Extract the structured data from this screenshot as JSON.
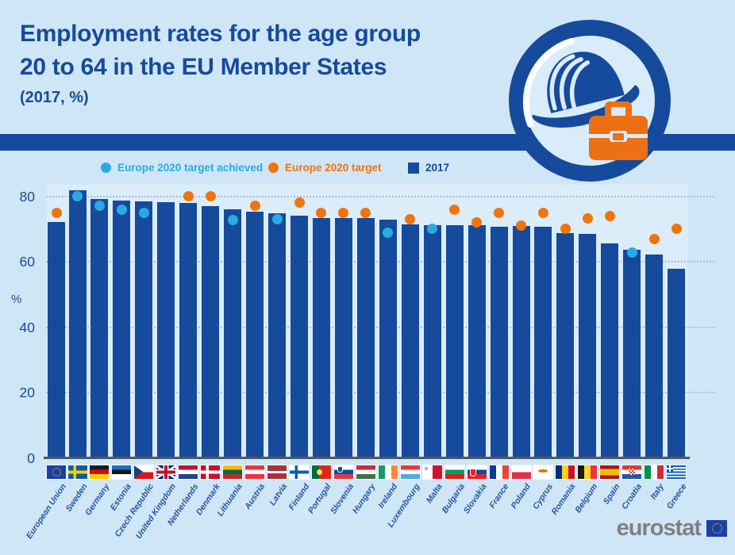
{
  "header": {
    "title_line1": "Employment rates for the age group",
    "title_line2": "20 to 64 in the EU Member States",
    "subtitle": "(2017, %)"
  },
  "legend": {
    "achieved_label": "Europe 2020 target achieved",
    "target_label": "Europe 2020 target",
    "year_label": "2017"
  },
  "colors": {
    "dark_blue": "#164A9C",
    "light_blue_dot": "#29ABE2",
    "orange_dot": "#F0740E",
    "page_background": "#CFE6F6",
    "plot_background": "#DAEDF9",
    "logo_gray": "#7E8083"
  },
  "logo": {
    "brand": "eurostat"
  },
  "chart_data": {
    "type": "bar",
    "title": "Employment rates for the age group 20 to 64 in the EU Member States",
    "subtitle": "(2017, %)",
    "ylabel": "%",
    "ylim": [
      0,
      85
    ],
    "yticks": [
      0,
      20,
      40,
      60,
      80
    ],
    "grid": "horizontal-dotted",
    "legend_position": "top",
    "bar_series_name": "2017",
    "target_series_name": "Europe 2020 target",
    "achieved_series_name": "Europe 2020 target achieved",
    "countries": [
      {
        "name": "European Union",
        "flag": "eu",
        "employment_2017": 72.2,
        "target_2020": 75,
        "target_achieved": false
      },
      {
        "name": "Sweden",
        "flag": "se",
        "employment_2017": 81.8,
        "target_2020": 80,
        "target_achieved": true
      },
      {
        "name": "Germany",
        "flag": "de",
        "employment_2017": 79.2,
        "target_2020": 77,
        "target_achieved": true
      },
      {
        "name": "Estonia",
        "flag": "ee",
        "employment_2017": 78.7,
        "target_2020": 76,
        "target_achieved": true
      },
      {
        "name": "Czech Republic",
        "flag": "cz",
        "employment_2017": 78.5,
        "target_2020": 75,
        "target_achieved": true
      },
      {
        "name": "United Kingdom",
        "flag": "gb",
        "employment_2017": 78.2,
        "target_2020": null,
        "target_achieved": false
      },
      {
        "name": "Netherlands",
        "flag": "nl",
        "employment_2017": 78.0,
        "target_2020": 80,
        "target_achieved": false
      },
      {
        "name": "Denmark",
        "flag": "dk",
        "employment_2017": 76.9,
        "target_2020": 80,
        "target_achieved": false
      },
      {
        "name": "Lithuania",
        "flag": "lt",
        "employment_2017": 76.0,
        "target_2020": 72.8,
        "target_achieved": true
      },
      {
        "name": "Austria",
        "flag": "at",
        "employment_2017": 75.4,
        "target_2020": 77,
        "target_achieved": false
      },
      {
        "name": "Latvia",
        "flag": "lv",
        "employment_2017": 74.8,
        "target_2020": 73,
        "target_achieved": true
      },
      {
        "name": "Finland",
        "flag": "fi",
        "employment_2017": 74.2,
        "target_2020": 78,
        "target_achieved": false
      },
      {
        "name": "Portugal",
        "flag": "pt",
        "employment_2017": 73.4,
        "target_2020": 75,
        "target_achieved": false
      },
      {
        "name": "Slovenia",
        "flag": "si",
        "employment_2017": 73.4,
        "target_2020": 75,
        "target_achieved": false
      },
      {
        "name": "Hungary",
        "flag": "hu",
        "employment_2017": 73.3,
        "target_2020": 75,
        "target_achieved": false
      },
      {
        "name": "Ireland",
        "flag": "ie",
        "employment_2017": 73.0,
        "target_2020": 69,
        "target_achieved": true
      },
      {
        "name": "Luxembourg",
        "flag": "lu",
        "employment_2017": 71.5,
        "target_2020": 73,
        "target_achieved": false
      },
      {
        "name": "Malta",
        "flag": "mt",
        "employment_2017": 71.2,
        "target_2020": 70,
        "target_achieved": true
      },
      {
        "name": "Bulgaria",
        "flag": "bg",
        "employment_2017": 71.3,
        "target_2020": 76,
        "target_achieved": false
      },
      {
        "name": "Slovakia",
        "flag": "sk",
        "employment_2017": 71.1,
        "target_2020": 72,
        "target_achieved": false
      },
      {
        "name": "France",
        "flag": "fr",
        "employment_2017": 70.6,
        "target_2020": 75,
        "target_achieved": false
      },
      {
        "name": "Poland",
        "flag": "pl",
        "employment_2017": 70.9,
        "target_2020": 71,
        "target_achieved": false
      },
      {
        "name": "Cyprus",
        "flag": "cy",
        "employment_2017": 70.8,
        "target_2020": 75,
        "target_achieved": false
      },
      {
        "name": "Romania",
        "flag": "ro",
        "employment_2017": 68.8,
        "target_2020": 70,
        "target_achieved": false
      },
      {
        "name": "Belgium",
        "flag": "be",
        "employment_2017": 68.5,
        "target_2020": 73.2,
        "target_achieved": false
      },
      {
        "name": "Spain",
        "flag": "es",
        "employment_2017": 65.5,
        "target_2020": 74,
        "target_achieved": false
      },
      {
        "name": "Croatia",
        "flag": "hr",
        "employment_2017": 63.6,
        "target_2020": 62.9,
        "target_achieved": true
      },
      {
        "name": "Italy",
        "flag": "it",
        "employment_2017": 62.3,
        "target_2020": 67,
        "target_achieved": false
      },
      {
        "name": "Greece",
        "flag": "gr",
        "employment_2017": 57.8,
        "target_2020": 70,
        "target_achieved": false
      }
    ]
  }
}
